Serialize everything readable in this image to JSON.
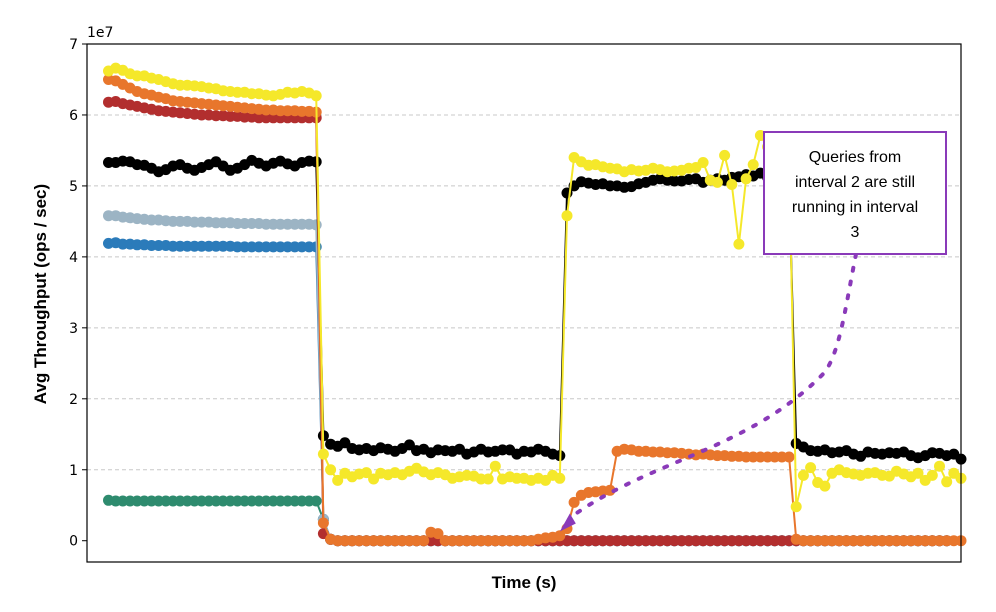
{
  "chart_data": {
    "type": "line",
    "title": "",
    "xlabel": "Time (s)",
    "ylabel": "Avg Throughput (ops / sec)",
    "y_offset_label": "1e7",
    "xlim": [
      -3,
      119
    ],
    "ylim": [
      -0.3,
      7.0
    ],
    "y_ticks": [
      0,
      1,
      2,
      3,
      4,
      5,
      6,
      7
    ],
    "y_tick_labels": [
      "0",
      "1",
      "2",
      "3",
      "4",
      "5",
      "6",
      "7"
    ],
    "x_ticks_visible": false,
    "grid": "y-dashed",
    "series": [
      {
        "name": "teal",
        "color": "#2e8b6e",
        "values": [
          0.57,
          0.56,
          0.56,
          0.56,
          0.56,
          0.56,
          0.56,
          0.56,
          0.56,
          0.56,
          0.56,
          0.56,
          0.56,
          0.56,
          0.56,
          0.56,
          0.56,
          0.56,
          0.56,
          0.56,
          0.56,
          0.56,
          0.56,
          0.56,
          0.56,
          0.56,
          0.56,
          0.56,
          0.56,
          0.56,
          0.3,
          0.02,
          0.0,
          0.0,
          0.0,
          0.0,
          0.0,
          0.0,
          0.0,
          0.0,
          0.0,
          0.0,
          0.0,
          0.0,
          0.0,
          0.0,
          0.0,
          0.0,
          0.0,
          0.0,
          0.0,
          0.0,
          0.0,
          0.0,
          0.0,
          0.0,
          0.0,
          0.0,
          0.0,
          0.0,
          0.0,
          0.0,
          0.0,
          0.0,
          0.0,
          0.0,
          0.0,
          0.0,
          0.0,
          0.0,
          0.0,
          0.0,
          0.0,
          0.0,
          0.0,
          0.0,
          0.0,
          0.0,
          0.0,
          0.0,
          0.0,
          0.0,
          0.0,
          0.0,
          0.0,
          0.0,
          0.0,
          0.0,
          0.0,
          0.0,
          0.0,
          0.0,
          0.0,
          0.0,
          0.0,
          0.0,
          0.0,
          0.0,
          0.0,
          0.0,
          0.0,
          0.0,
          0.0,
          0.0,
          0.0,
          0.0,
          0.0,
          0.0,
          0.0,
          0.0,
          0.0,
          0.0,
          0.0,
          0.0,
          0.0,
          0.0,
          0.0,
          0.0
        ]
      },
      {
        "name": "blue",
        "color": "#2b7bba",
        "values": [
          4.19,
          4.2,
          4.18,
          4.18,
          4.17,
          4.17,
          4.16,
          4.16,
          4.16,
          4.15,
          4.15,
          4.15,
          4.15,
          4.15,
          4.15,
          4.15,
          4.15,
          4.15,
          4.14,
          4.14,
          4.14,
          4.14,
          4.14,
          4.14,
          4.14,
          4.14,
          4.14,
          4.14,
          4.14,
          4.14,
          0.3,
          0.02,
          0.0,
          0.0,
          0.0,
          0.0,
          0.0,
          0.0,
          0.0,
          0.0,
          0.0,
          0.0,
          0.0,
          0.0,
          0.0,
          0.0,
          0.0,
          0.0,
          0.0,
          0.0,
          0.0,
          0.0,
          0.0,
          0.0,
          0.0,
          0.0,
          0.0,
          0.0,
          0.0,
          0.0,
          0.0,
          0.0,
          0.0,
          0.0,
          0.0,
          0.0,
          0.0,
          0.0,
          0.0,
          0.0,
          0.0,
          0.0,
          0.0,
          0.0,
          0.0,
          0.0,
          0.0,
          0.0,
          0.0,
          0.0,
          0.0,
          0.0,
          0.0,
          0.0,
          0.0,
          0.0,
          0.0,
          0.0,
          0.0,
          0.0,
          0.0,
          0.0,
          0.0,
          0.0,
          0.0,
          0.0,
          0.0,
          0.0,
          0.0,
          0.0,
          0.0,
          0.0,
          0.0,
          0.0,
          0.0,
          0.0,
          0.0,
          0.0,
          0.0,
          0.0,
          0.0,
          0.0,
          0.0,
          0.0,
          0.0,
          0.0,
          0.0,
          0.0
        ]
      },
      {
        "name": "gray-blue",
        "color": "#9cb4c4",
        "values": [
          4.58,
          4.58,
          4.56,
          4.55,
          4.54,
          4.53,
          4.52,
          4.52,
          4.51,
          4.5,
          4.5,
          4.5,
          4.49,
          4.49,
          4.49,
          4.48,
          4.48,
          4.48,
          4.47,
          4.47,
          4.47,
          4.47,
          4.46,
          4.46,
          4.46,
          4.46,
          4.46,
          4.46,
          4.46,
          4.45,
          0.3,
          0.02,
          0.0,
          0.0,
          0.0,
          0.0,
          0.0,
          0.0,
          0.0,
          0.0,
          0.0,
          0.0,
          0.0,
          0.0,
          0.0,
          0.0,
          0.0,
          0.0,
          0.0,
          0.0,
          0.0,
          0.0,
          0.0,
          0.0,
          0.0,
          0.0,
          0.0,
          0.0,
          0.0,
          0.0,
          0.0,
          0.0,
          0.0,
          0.0,
          0.0,
          0.0,
          0.0,
          0.0,
          0.0,
          0.0,
          0.0,
          0.0,
          0.0,
          0.0,
          0.0,
          0.0,
          0.0,
          0.0,
          0.0,
          0.0,
          0.0,
          0.0,
          0.0,
          0.0,
          0.0,
          0.0,
          0.0,
          0.0,
          0.0,
          0.0,
          0.0,
          0.0,
          0.0,
          0.0,
          0.0,
          0.0,
          0.0,
          0.0,
          0.0,
          0.0,
          0.0,
          0.0,
          0.0,
          0.0,
          0.0,
          0.0,
          0.0,
          0.0,
          0.0,
          0.0,
          0.0,
          0.0,
          0.0,
          0.0,
          0.0,
          0.0,
          0.0,
          0.0
        ]
      },
      {
        "name": "red",
        "color": "#b22e2e",
        "values": [
          6.18,
          6.19,
          6.16,
          6.14,
          6.12,
          6.1,
          6.08,
          6.06,
          6.05,
          6.04,
          6.03,
          6.02,
          6.01,
          6.0,
          6.0,
          5.99,
          5.99,
          5.98,
          5.98,
          5.97,
          5.97,
          5.96,
          5.96,
          5.96,
          5.96,
          5.96,
          5.96,
          5.96,
          5.96,
          5.96,
          0.1,
          0.02,
          0.0,
          0.0,
          0.0,
          0.0,
          0.0,
          0.0,
          0.0,
          0.0,
          0.0,
          0.0,
          0.0,
          0.0,
          0.0,
          0.0,
          0.0,
          0.0,
          0.0,
          0.0,
          0.0,
          0.0,
          0.0,
          0.0,
          0.0,
          0.0,
          0.0,
          0.0,
          0.0,
          0.0,
          0.0,
          0.0,
          0.0,
          0.0,
          0.0,
          0.0,
          0.0,
          0.0,
          0.0,
          0.0,
          0.0,
          0.0,
          0.0,
          0.0,
          0.0,
          0.0,
          0.0,
          0.0,
          0.0,
          0.0,
          0.0,
          0.0,
          0.0,
          0.0,
          0.0,
          0.0,
          0.0,
          0.0,
          0.0,
          0.0,
          0.0,
          0.0,
          0.0,
          0.0,
          0.0,
          0.0,
          0.0,
          0.0,
          0.0,
          0.0,
          0.0,
          0.0,
          0.0,
          0.0,
          0.0,
          0.0,
          0.0,
          0.0,
          0.0,
          0.0,
          0.0,
          0.0,
          0.0,
          0.0,
          0.0,
          0.0,
          0.0,
          0.0
        ]
      },
      {
        "name": "black",
        "color": "#000000",
        "values": [
          5.33,
          5.33,
          5.35,
          5.34,
          5.3,
          5.29,
          5.25,
          5.2,
          5.23,
          5.28,
          5.3,
          5.25,
          5.22,
          5.26,
          5.3,
          5.34,
          5.28,
          5.22,
          5.25,
          5.3,
          5.36,
          5.32,
          5.28,
          5.32,
          5.35,
          5.31,
          5.28,
          5.33,
          5.35,
          5.34,
          1.48,
          1.36,
          1.33,
          1.38,
          1.3,
          1.28,
          1.3,
          1.27,
          1.31,
          1.29,
          1.26,
          1.3,
          1.35,
          1.27,
          1.29,
          1.24,
          1.28,
          1.27,
          1.26,
          1.29,
          1.22,
          1.25,
          1.29,
          1.25,
          1.26,
          1.28,
          1.28,
          1.22,
          1.26,
          1.25,
          1.29,
          1.26,
          1.22,
          1.2,
          4.9,
          5.0,
          5.06,
          5.04,
          5.02,
          5.03,
          5.0,
          5.0,
          4.98,
          4.99,
          5.03,
          5.05,
          5.08,
          5.1,
          5.08,
          5.07,
          5.07,
          5.09,
          5.1,
          5.05,
          5.08,
          5.1,
          5.08,
          5.12,
          5.13,
          5.16,
          5.14,
          5.18,
          5.12,
          5.16,
          5.12,
          5.04,
          1.37,
          1.32,
          1.27,
          1.26,
          1.28,
          1.24,
          1.25,
          1.27,
          1.22,
          1.19,
          1.25,
          1.23,
          1.22,
          1.24,
          1.23,
          1.25,
          1.2,
          1.17,
          1.2,
          1.24,
          1.23,
          1.2,
          1.22,
          1.15
        ]
      },
      {
        "name": "orange",
        "color": "#e8762c",
        "values": [
          6.5,
          6.48,
          6.43,
          6.38,
          6.33,
          6.3,
          6.28,
          6.25,
          6.23,
          6.2,
          6.19,
          6.18,
          6.17,
          6.16,
          6.15,
          6.14,
          6.13,
          6.12,
          6.11,
          6.1,
          6.09,
          6.08,
          6.07,
          6.07,
          6.06,
          6.06,
          6.06,
          6.05,
          6.05,
          6.04,
          0.25,
          0.02,
          0.0,
          0.0,
          0.0,
          0.0,
          0.0,
          0.0,
          0.0,
          0.0,
          0.0,
          0.0,
          0.0,
          0.0,
          0.0,
          0.12,
          0.1,
          0.0,
          0.0,
          0.0,
          0.0,
          0.0,
          0.0,
          0.0,
          0.0,
          0.0,
          0.0,
          0.0,
          0.0,
          0.0,
          0.02,
          0.04,
          0.05,
          0.07,
          0.17,
          0.54,
          0.64,
          0.68,
          0.69,
          0.7,
          0.71,
          1.26,
          1.29,
          1.28,
          1.26,
          1.26,
          1.25,
          1.25,
          1.24,
          1.24,
          1.23,
          1.22,
          1.21,
          1.22,
          1.21,
          1.2,
          1.2,
          1.19,
          1.19,
          1.18,
          1.18,
          1.18,
          1.18,
          1.18,
          1.18,
          1.18,
          0.02,
          0.0,
          0.0,
          0.0,
          0.0,
          0.0,
          0.0,
          0.0,
          0.0,
          0.0,
          0.0,
          0.0,
          0.0,
          0.0,
          0.0,
          0.0,
          0.0,
          0.0,
          0.0,
          0.0,
          0.0,
          0.0,
          0.0,
          0.0
        ]
      },
      {
        "name": "yellow",
        "color": "#f5e82a",
        "values": [
          6.62,
          6.66,
          6.63,
          6.58,
          6.55,
          6.55,
          6.52,
          6.5,
          6.47,
          6.44,
          6.42,
          6.42,
          6.41,
          6.4,
          6.38,
          6.37,
          6.34,
          6.33,
          6.32,
          6.32,
          6.3,
          6.3,
          6.28,
          6.27,
          6.29,
          6.32,
          6.31,
          6.33,
          6.31,
          6.27,
          1.22,
          1.0,
          0.85,
          0.95,
          0.9,
          0.94,
          0.96,
          0.87,
          0.95,
          0.93,
          0.96,
          0.93,
          0.98,
          1.02,
          0.97,
          0.93,
          0.96,
          0.93,
          0.88,
          0.9,
          0.92,
          0.91,
          0.87,
          0.87,
          1.05,
          0.87,
          0.9,
          0.88,
          0.88,
          0.85,
          0.88,
          0.85,
          0.92,
          0.88,
          4.58,
          5.4,
          5.34,
          5.29,
          5.3,
          5.27,
          5.25,
          5.24,
          5.2,
          5.23,
          5.21,
          5.22,
          5.25,
          5.23,
          5.2,
          5.21,
          5.22,
          5.25,
          5.26,
          5.33,
          5.08,
          5.05,
          5.43,
          5.02,
          4.18,
          5.1,
          5.3,
          5.71,
          5.55,
          5.26,
          5.41,
          5.35,
          0.48,
          0.92,
          1.03,
          0.82,
          0.77,
          0.95,
          1.0,
          0.96,
          0.94,
          0.92,
          0.95,
          0.96,
          0.92,
          0.91,
          0.98,
          0.94,
          0.9,
          0.95,
          0.85,
          0.92,
          1.05,
          0.83,
          0.95,
          0.88
        ]
      }
    ],
    "annotation": {
      "text_lines": [
        "Queries from",
        "interval 2 are still",
        "running in interval",
        "3"
      ],
      "box_color": "#8a3ab9",
      "arrow_color": "#8a3ab9",
      "arrow_target": {
        "x": 63,
        "y": 0.2
      }
    }
  }
}
